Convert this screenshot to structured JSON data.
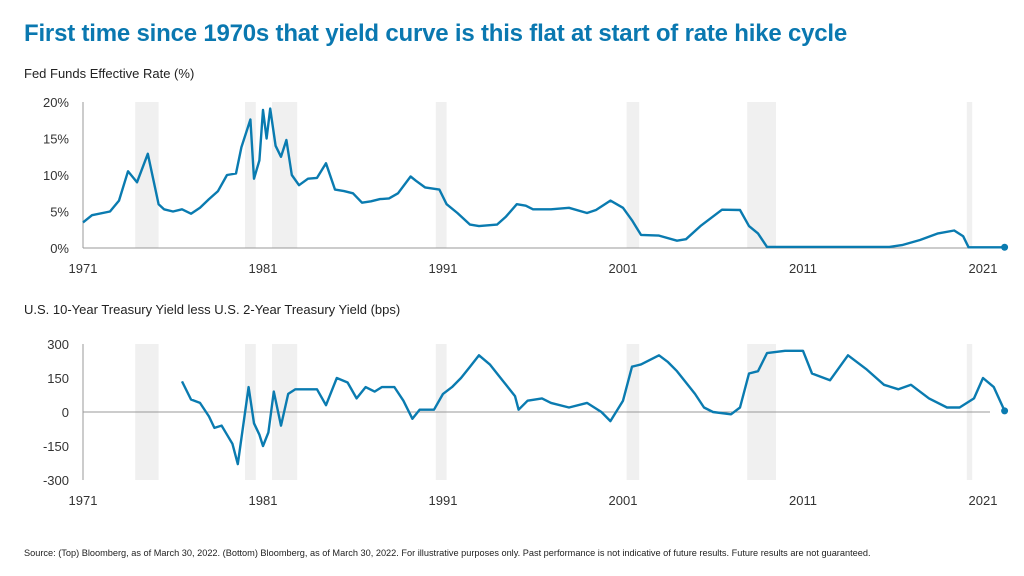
{
  "title": "First time since 1970s that yield curve is this flat at start of rate hike cycle",
  "source": "Source: (Top) Bloomberg, as of March 30, 2022. (Bottom) Bloomberg, as of March 30, 2022. For illustrative purposes only. Past performance is not indicative of future results. Future results are not guaranteed.",
  "colors": {
    "title": "#0a78b0",
    "line": "#0a7bb0",
    "recession_band": "#f0f0f0",
    "axis": "#999999"
  },
  "chart_data": [
    {
      "type": "line",
      "title": "Fed Funds Effective Rate (%)",
      "xlim": [
        1971,
        2022.3
      ],
      "ylim": [
        0,
        20
      ],
      "x_ticks": [
        "1971",
        "1981",
        "1991",
        "2001",
        "2011",
        "2021"
      ],
      "y_ticks": [
        "0%",
        "5%",
        "10%",
        "15%",
        "20%"
      ],
      "y_tick_values": [
        0,
        5,
        10,
        15,
        20
      ],
      "recession_bands": [
        [
          1973.9,
          1975.2
        ],
        [
          1980.0,
          1980.6
        ],
        [
          1981.5,
          1982.9
        ],
        [
          1990.6,
          1991.2
        ],
        [
          2001.2,
          2001.9
        ],
        [
          2007.9,
          2009.5
        ],
        [
          2020.1,
          2020.4
        ]
      ],
      "x": [
        1971.0,
        1971.5,
        1972.5,
        1973.0,
        1973.5,
        1974.0,
        1974.6,
        1975.2,
        1975.5,
        1976.0,
        1976.5,
        1977.0,
        1977.5,
        1978.0,
        1978.5,
        1979.0,
        1979.5,
        1979.8,
        1980.3,
        1980.5,
        1980.8,
        1981.0,
        1981.2,
        1981.4,
        1981.7,
        1982.0,
        1982.3,
        1982.6,
        1983.0,
        1983.5,
        1984.0,
        1984.5,
        1985.0,
        1985.5,
        1986.0,
        1986.5,
        1987.0,
        1987.5,
        1988.0,
        1988.5,
        1989.2,
        1989.5,
        1990.0,
        1990.8,
        1991.2,
        1991.8,
        1992.5,
        1993.0,
        1994.0,
        1994.5,
        1995.1,
        1995.6,
        1996.0,
        1997.0,
        1998.0,
        1999.0,
        1999.5,
        2000.3,
        2001.0,
        2001.5,
        2002.0,
        2003.0,
        2004.0,
        2004.5,
        2005.3,
        2006.5,
        2007.5,
        2008.0,
        2008.5,
        2009.0,
        2015.8,
        2016.5,
        2017.5,
        2018.5,
        2019.4,
        2019.9,
        2020.2,
        2022.2
      ],
      "values": [
        3.5,
        4.5,
        5.0,
        6.5,
        10.5,
        9.0,
        12.9,
        6.0,
        5.3,
        5.0,
        5.3,
        4.7,
        5.5,
        6.7,
        7.8,
        10.0,
        10.2,
        13.8,
        17.6,
        9.5,
        12.0,
        18.9,
        15.0,
        19.1,
        14.0,
        12.5,
        14.8,
        10.0,
        8.6,
        9.5,
        9.6,
        11.6,
        8.0,
        7.8,
        7.5,
        6.2,
        6.4,
        6.7,
        6.8,
        7.5,
        9.8,
        9.2,
        8.3,
        8.0,
        6.0,
        4.8,
        3.2,
        3.0,
        3.2,
        4.3,
        6.0,
        5.8,
        5.3,
        5.3,
        5.5,
        4.8,
        5.2,
        6.5,
        5.5,
        3.8,
        1.8,
        1.7,
        1.0,
        1.2,
        3.0,
        5.25,
        5.2,
        3.0,
        2.0,
        0.15,
        0.15,
        0.4,
        1.1,
        2.0,
        2.4,
        1.6,
        0.1,
        0.1
      ],
      "end_marker": true
    },
    {
      "type": "line",
      "title": "U.S. 10-Year Treasury Yield less U.S. 2-Year Treasury Yield (bps)",
      "xlim": [
        1971,
        2022.3
      ],
      "ylim": [
        -300,
        300
      ],
      "x_ticks": [
        "1971",
        "1981",
        "1991",
        "2001",
        "2011",
        "2021"
      ],
      "y_ticks": [
        "-300",
        "-150",
        "0",
        "150",
        "300"
      ],
      "y_tick_values": [
        -300,
        -150,
        0,
        150,
        300
      ],
      "recession_bands": [
        [
          1973.9,
          1975.2
        ],
        [
          1980.0,
          1980.6
        ],
        [
          1981.5,
          1982.9
        ],
        [
          1990.6,
          1991.2
        ],
        [
          2001.2,
          2001.9
        ],
        [
          2007.9,
          2009.5
        ],
        [
          2020.1,
          2020.4
        ]
      ],
      "x": [
        1976.5,
        1977.0,
        1977.5,
        1978.0,
        1978.3,
        1978.7,
        1979.0,
        1979.3,
        1979.6,
        1980.2,
        1980.5,
        1980.8,
        1981.0,
        1981.3,
        1981.6,
        1982.0,
        1982.4,
        1982.8,
        1983.5,
        1984.0,
        1984.5,
        1985.1,
        1985.7,
        1986.2,
        1986.7,
        1987.2,
        1987.6,
        1988.3,
        1988.8,
        1989.3,
        1989.7,
        1990.5,
        1991.0,
        1991.5,
        1992.0,
        1992.5,
        1993.0,
        1993.6,
        1994.2,
        1994.5,
        1995.0,
        1995.2,
        1995.7,
        1996.5,
        1997.0,
        1998.0,
        1999.0,
        1999.8,
        2000.3,
        2001.0,
        2001.5,
        2002.0,
        2003.0,
        2003.5,
        2004.0,
        2005.0,
        2005.5,
        2006.0,
        2007.0,
        2007.5,
        2008.0,
        2008.5,
        2009.0,
        2010.0,
        2011.0,
        2011.5,
        2012.5,
        2013.5,
        2014.5,
        2015.5,
        2016.3,
        2017.0,
        2018.0,
        2019.0,
        2019.7,
        2020.5,
        2021.0,
        2021.6,
        2022.2
      ],
      "values": [
        135,
        55,
        40,
        -20,
        -70,
        -60,
        -100,
        -140,
        -230,
        110,
        -50,
        -100,
        -150,
        -90,
        90,
        -60,
        80,
        100,
        100,
        100,
        30,
        150,
        130,
        60,
        110,
        90,
        110,
        110,
        50,
        -30,
        10,
        10,
        80,
        110,
        150,
        200,
        250,
        210,
        150,
        120,
        70,
        10,
        50,
        60,
        40,
        20,
        40,
        0,
        -40,
        50,
        200,
        210,
        250,
        220,
        180,
        80,
        20,
        0,
        -10,
        20,
        170,
        180,
        260,
        270,
        270,
        170,
        140,
        250,
        190,
        120,
        100,
        120,
        60,
        20,
        20,
        60,
        150,
        110,
        5
      ],
      "zero_line": true,
      "end_marker": true
    }
  ]
}
